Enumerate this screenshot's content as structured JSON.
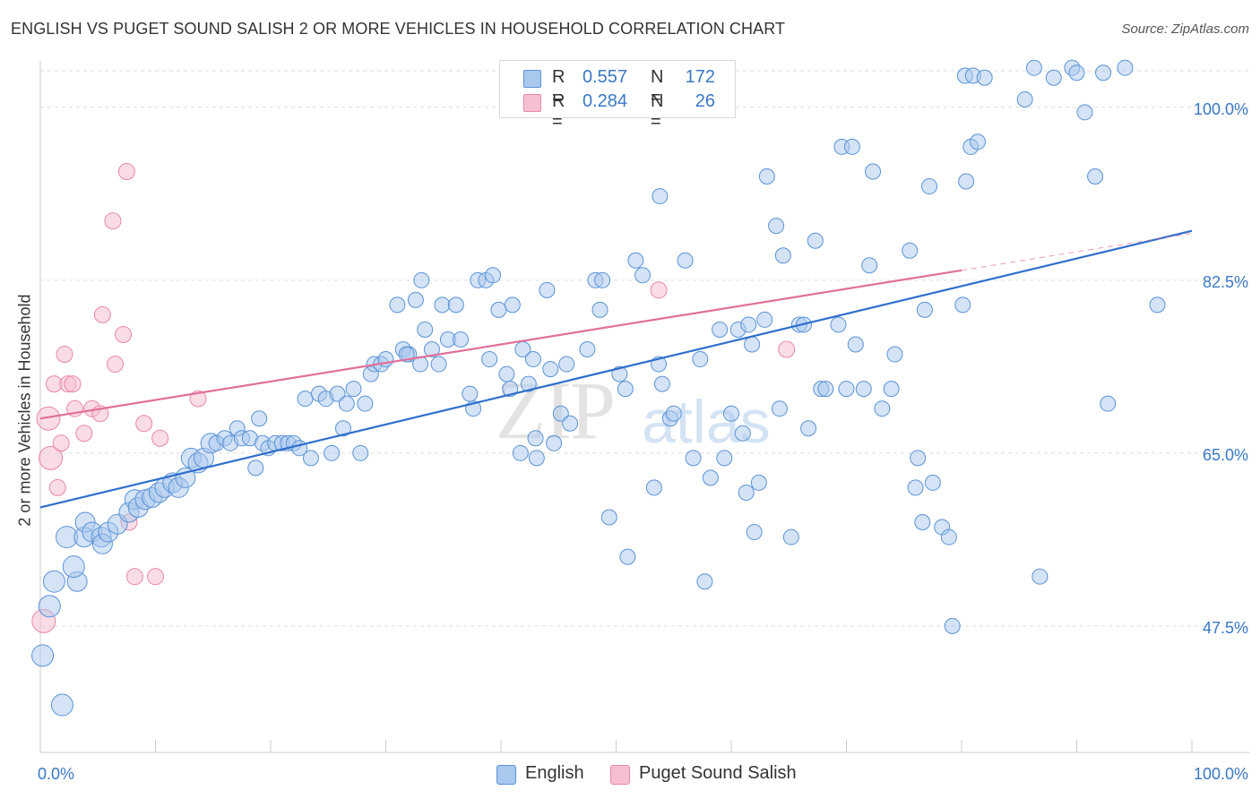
{
  "header": {
    "title": "ENGLISH VS PUGET SOUND SALISH 2 OR MORE VEHICLES IN HOUSEHOLD CORRELATION CHART",
    "source": "Source: ZipAtlas.com"
  },
  "legend_top": {
    "rows": [
      {
        "r_label": "R =",
        "r_value": "0.557",
        "n_label": "N =",
        "n_value": "172"
      },
      {
        "r_label": "R =",
        "r_value": "0.284",
        "n_label": "N =",
        "n_value": "26"
      }
    ]
  },
  "watermark": {
    "zip": "ZIP",
    "atlas": "atlas"
  },
  "colors": {
    "english_fill": "#a9c8ee",
    "english_stroke": "#5a93d6",
    "english_line": "#2f6fcc",
    "salish_fill": "#f6bfd0",
    "salish_stroke": "#e888a6",
    "salish_line": "#e0709a",
    "axis_label": "#3a78c4",
    "grid": "#dddddd"
  },
  "chart_data": {
    "type": "scatter",
    "title": "ENGLISH VS PUGET SOUND SALISH 2 OR MORE VEHICLES IN HOUSEHOLD CORRELATION CHART",
    "xlabel": "",
    "ylabel": "2 or more Vehicles in Household",
    "xlim": [
      0,
      100
    ],
    "ylim": [
      34.7,
      103.7
    ],
    "x_tick_labels": [
      "0.0%",
      "100.0%"
    ],
    "y_ticks": [
      47.5,
      65.0,
      82.5,
      100.0
    ],
    "y_tick_labels": [
      "47.5%",
      "65.0%",
      "82.5%",
      "100.0%"
    ],
    "grid": true,
    "legend_position": "top-center",
    "series": [
      {
        "name": "English",
        "r": 0.557,
        "n": 172,
        "trend": {
          "x": [
            0,
            100
          ],
          "y": [
            59.5,
            87.5
          ]
        },
        "points": [
          [
            0.2,
            44.5
          ],
          [
            0.8,
            49.5
          ],
          [
            1.9,
            39.5
          ],
          [
            1.2,
            52.0
          ],
          [
            3.2,
            52.0
          ],
          [
            2.9,
            53.5
          ],
          [
            2.3,
            56.5
          ],
          [
            3.8,
            56.5
          ],
          [
            3.9,
            58.0
          ],
          [
            4.5,
            57.0
          ],
          [
            5.3,
            56.5
          ],
          [
            5.4,
            55.8
          ],
          [
            5.9,
            57.0
          ],
          [
            6.7,
            57.8
          ],
          [
            7.7,
            59.0
          ],
          [
            8.2,
            60.3
          ],
          [
            8.5,
            59.5
          ],
          [
            9.1,
            60.3
          ],
          [
            9.7,
            60.5
          ],
          [
            10.3,
            61.0
          ],
          [
            10.8,
            61.5
          ],
          [
            11.5,
            62.0
          ],
          [
            12.0,
            61.5
          ],
          [
            12.6,
            62.5
          ],
          [
            13.1,
            64.5
          ],
          [
            13.7,
            64.0
          ],
          [
            14.2,
            64.5
          ],
          [
            14.8,
            66.0
          ],
          [
            15.3,
            66.0
          ],
          [
            16.0,
            66.5
          ],
          [
            16.5,
            66.0
          ],
          [
            17.1,
            67.5
          ],
          [
            17.5,
            66.5
          ],
          [
            18.2,
            66.5
          ],
          [
            18.7,
            63.5
          ],
          [
            19.0,
            68.5
          ],
          [
            19.3,
            66.0
          ],
          [
            19.8,
            65.5
          ],
          [
            20.4,
            66.0
          ],
          [
            21.0,
            66.0
          ],
          [
            21.5,
            66.0
          ],
          [
            22.0,
            66.0
          ],
          [
            22.5,
            65.5
          ],
          [
            23.0,
            70.5
          ],
          [
            23.5,
            64.5
          ],
          [
            24.2,
            71.0
          ],
          [
            24.8,
            70.5
          ],
          [
            25.3,
            65.0
          ],
          [
            25.8,
            71.0
          ],
          [
            26.3,
            67.5
          ],
          [
            26.6,
            70.0
          ],
          [
            27.2,
            71.5
          ],
          [
            27.8,
            65.0
          ],
          [
            28.2,
            70.0
          ],
          [
            28.7,
            73.0
          ],
          [
            29.0,
            74.0
          ],
          [
            29.6,
            74.0
          ],
          [
            30.0,
            74.5
          ],
          [
            31.0,
            80.0
          ],
          [
            31.5,
            75.5
          ],
          [
            32.0,
            75.0
          ],
          [
            33.0,
            74.0
          ],
          [
            31.8,
            75.0
          ],
          [
            32.6,
            80.5
          ],
          [
            33.1,
            82.5
          ],
          [
            33.4,
            77.5
          ],
          [
            34.0,
            75.5
          ],
          [
            34.6,
            74.0
          ],
          [
            34.9,
            80.0
          ],
          [
            35.4,
            76.5
          ],
          [
            36.1,
            80.0
          ],
          [
            36.5,
            76.5
          ],
          [
            37.3,
            71.0
          ],
          [
            37.6,
            69.5
          ],
          [
            38.0,
            82.5
          ],
          [
            38.7,
            82.5
          ],
          [
            39.0,
            74.5
          ],
          [
            39.3,
            83.0
          ],
          [
            39.8,
            79.5
          ],
          [
            40.5,
            73.0
          ],
          [
            40.8,
            71.5
          ],
          [
            41.0,
            80.0
          ],
          [
            41.7,
            65.0
          ],
          [
            41.9,
            75.5
          ],
          [
            42.4,
            72.0
          ],
          [
            42.8,
            74.5
          ],
          [
            43.0,
            66.5
          ],
          [
            43.1,
            64.5
          ],
          [
            44.0,
            81.5
          ],
          [
            44.3,
            73.5
          ],
          [
            44.6,
            66.0
          ],
          [
            45.2,
            69.0
          ],
          [
            45.7,
            74.0
          ],
          [
            46.0,
            68.0
          ],
          [
            47.5,
            75.5
          ],
          [
            48.2,
            82.5
          ],
          [
            48.6,
            79.5
          ],
          [
            48.8,
            82.5
          ],
          [
            49.4,
            58.5
          ],
          [
            50.3,
            73.0
          ],
          [
            50.8,
            71.5
          ],
          [
            51.0,
            54.5
          ],
          [
            51.7,
            84.5
          ],
          [
            52.3,
            83.0
          ],
          [
            53.3,
            61.5
          ],
          [
            53.7,
            74.0
          ],
          [
            54.0,
            72.0
          ],
          [
            54.7,
            68.5
          ],
          [
            55.0,
            69.0
          ],
          [
            53.8,
            91.0
          ],
          [
            56.0,
            84.5
          ],
          [
            56.7,
            64.5
          ],
          [
            57.3,
            74.5
          ],
          [
            57.7,
            52.0
          ],
          [
            58.2,
            62.5
          ],
          [
            59.0,
            77.5
          ],
          [
            59.4,
            64.5
          ],
          [
            60.0,
            69.0
          ],
          [
            60.6,
            77.5
          ],
          [
            61.0,
            67.0
          ],
          [
            61.3,
            61.0
          ],
          [
            61.5,
            78.0
          ],
          [
            61.8,
            76.0
          ],
          [
            62.0,
            57.0
          ],
          [
            62.4,
            62.0
          ],
          [
            62.9,
            78.5
          ],
          [
            63.1,
            93.0
          ],
          [
            63.9,
            88.0
          ],
          [
            64.2,
            69.5
          ],
          [
            64.5,
            85.0
          ],
          [
            65.2,
            56.5
          ],
          [
            65.9,
            78.0
          ],
          [
            66.3,
            78.0
          ],
          [
            67.3,
            86.5
          ],
          [
            66.7,
            67.5
          ],
          [
            67.8,
            71.5
          ],
          [
            68.2,
            71.5
          ],
          [
            69.3,
            78.0
          ],
          [
            69.6,
            96.0
          ],
          [
            70.0,
            71.5
          ],
          [
            70.5,
            96.0
          ],
          [
            70.8,
            76.0
          ],
          [
            71.5,
            71.5
          ],
          [
            72.0,
            84.0
          ],
          [
            72.3,
            93.5
          ],
          [
            73.1,
            69.5
          ],
          [
            73.9,
            71.5
          ],
          [
            74.2,
            75.0
          ],
          [
            75.5,
            85.5
          ],
          [
            76.0,
            61.5
          ],
          [
            76.2,
            64.5
          ],
          [
            76.6,
            58.0
          ],
          [
            76.8,
            79.5
          ],
          [
            77.2,
            92.0
          ],
          [
            77.5,
            62.0
          ],
          [
            78.3,
            57.5
          ],
          [
            78.9,
            56.5
          ],
          [
            79.2,
            47.5
          ],
          [
            80.1,
            80.0
          ],
          [
            80.4,
            92.5
          ],
          [
            80.8,
            96.0
          ],
          [
            80.3,
            103.2
          ],
          [
            81.0,
            103.2
          ],
          [
            81.4,
            96.5
          ],
          [
            82.0,
            103.0
          ],
          [
            85.5,
            100.8
          ],
          [
            86.3,
            104.0
          ],
          [
            86.8,
            52.5
          ],
          [
            88.0,
            103.0
          ],
          [
            89.6,
            104.0
          ],
          [
            90.0,
            103.5
          ],
          [
            90.7,
            99.5
          ],
          [
            91.6,
            93.0
          ],
          [
            92.3,
            103.5
          ],
          [
            94.2,
            104.0
          ],
          [
            92.7,
            70.0
          ],
          [
            97.0,
            80.0
          ]
        ]
      },
      {
        "name": "Puget Sound Salish",
        "r": 0.284,
        "n": 26,
        "trend": {
          "x": [
            0,
            80
          ],
          "y": [
            68.5,
            83.5
          ]
        },
        "points": [
          [
            0.3,
            48.0
          ],
          [
            0.7,
            68.5
          ],
          [
            0.9,
            64.5
          ],
          [
            1.2,
            72.0
          ],
          [
            1.5,
            61.5
          ],
          [
            1.8,
            66.0
          ],
          [
            2.1,
            75.0
          ],
          [
            2.4,
            72.0
          ],
          [
            2.8,
            72.0
          ],
          [
            3.0,
            69.5
          ],
          [
            3.8,
            67.0
          ],
          [
            4.5,
            69.5
          ],
          [
            5.2,
            69.0
          ],
          [
            5.4,
            79.0
          ],
          [
            6.3,
            88.5
          ],
          [
            6.5,
            74.0
          ],
          [
            7.2,
            77.0
          ],
          [
            7.7,
            58.0
          ],
          [
            7.5,
            93.5
          ],
          [
            8.2,
            52.5
          ],
          [
            9.0,
            68.0
          ],
          [
            10.4,
            66.5
          ],
          [
            10.0,
            52.5
          ],
          [
            13.7,
            70.5
          ],
          [
            53.7,
            81.5
          ],
          [
            64.8,
            75.5
          ]
        ]
      }
    ]
  },
  "legend_bottom": {
    "items": [
      {
        "label": "English"
      },
      {
        "label": "Puget Sound Salish"
      }
    ]
  }
}
